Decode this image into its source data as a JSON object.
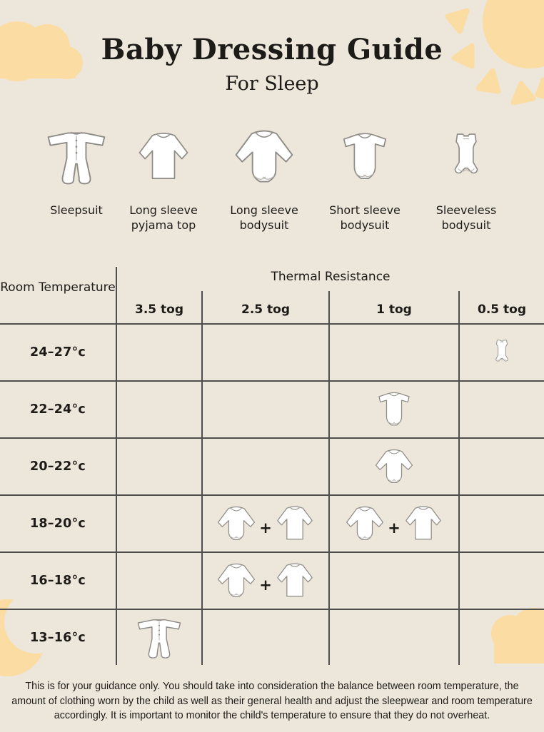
{
  "colors": {
    "background": "#EDE6DB",
    "accent": "#FBDCA2",
    "grid_line": "#4F4F4F",
    "text": "#1D1B18"
  },
  "header": {
    "title": "Baby Dressing Guide",
    "subtitle": "For Sleep"
  },
  "legend": {
    "items": [
      {
        "icon": "sleepsuit",
        "label": "Sleepsuit"
      },
      {
        "icon": "pyjama-top",
        "label": "Long sleeve pyjama top"
      },
      {
        "icon": "long-sleeve-bodysuit",
        "label": "Long sleeve bodysuit"
      },
      {
        "icon": "short-sleeve-bodysuit",
        "label": "Short sleeve bodysuit"
      },
      {
        "icon": "sleeveless-bodysuit",
        "label": "Sleeveless bodysuit"
      }
    ]
  },
  "table": {
    "row_axis_label": "Room Temperature",
    "col_axis_label": "Thermal Resistance",
    "columns": [
      "3.5 tog",
      "2.5 tog",
      "1 tog",
      "0.5 tog"
    ],
    "plus_sign": "+",
    "rows": [
      {
        "temp": "24–27°c",
        "cells": [
          [],
          [],
          [],
          [
            "sleeveless-bodysuit"
          ]
        ]
      },
      {
        "temp": "22–24°c",
        "cells": [
          [],
          [],
          [
            "short-sleeve-bodysuit"
          ],
          []
        ]
      },
      {
        "temp": "20–22°c",
        "cells": [
          [],
          [],
          [
            "long-sleeve-bodysuit"
          ],
          []
        ]
      },
      {
        "temp": "18–20°c",
        "cells": [
          [],
          [
            "long-sleeve-bodysuit",
            "pyjama-top"
          ],
          [
            "long-sleeve-bodysuit",
            "pyjama-top"
          ],
          []
        ]
      },
      {
        "temp": "16–18°c",
        "cells": [
          [],
          [
            "long-sleeve-bodysuit",
            "pyjama-top"
          ],
          [],
          []
        ]
      },
      {
        "temp": "13–16°c",
        "cells": [
          [
            "sleepsuit"
          ],
          [],
          [],
          []
        ]
      }
    ]
  },
  "footer": {
    "disclaimer": "This is for your guidance only. You should take into consideration the balance between room temperature, the amount of clothing worn by the child as well as their general health and adjust the sleepwear and room temperature accordingly. It is important to monitor the child's temperature to ensure that they do not overheat."
  },
  "decorations": {
    "top_left": "cloud-icon",
    "top_right": "sun-icon",
    "bottom_left": "moon-icon",
    "bottom_right": "cloud-icon"
  }
}
